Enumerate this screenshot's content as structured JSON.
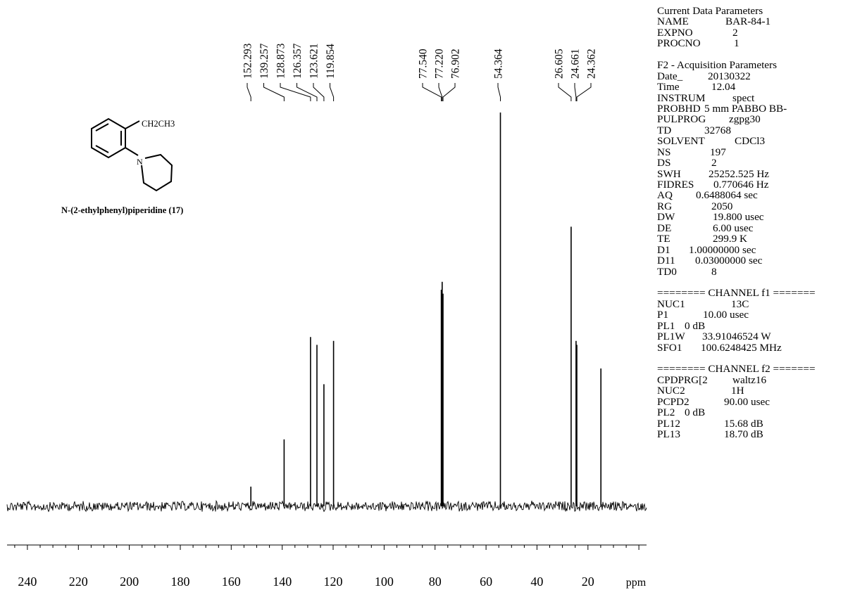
{
  "chart_data": {
    "type": "line",
    "title": "",
    "xlabel": "ppm",
    "ylabel": "",
    "x_reversed": true,
    "xlim": [
      248,
      -3
    ],
    "ticks": [
      240,
      220,
      200,
      180,
      160,
      140,
      120,
      100,
      80,
      60,
      40,
      20
    ],
    "tick_labels": [
      "240",
      "220",
      "200",
      "180",
      "160",
      "140",
      "120",
      "100",
      "80",
      "60",
      "40",
      "20"
    ],
    "axis_unit": "ppm",
    "peak_labels": [
      "152.293",
      "139.257",
      "128.873",
      "126.357",
      "123.621",
      "119.854",
      "77.540",
      "77.220",
      "76.902",
      "54.364",
      "26.605",
      "24.661",
      "24.362"
    ],
    "peaks": [
      {
        "ppm": 152.293,
        "height": 0.05
      },
      {
        "ppm": 139.257,
        "height": 0.17
      },
      {
        "ppm": 128.873,
        "height": 0.43
      },
      {
        "ppm": 126.357,
        "height": 0.41
      },
      {
        "ppm": 123.621,
        "height": 0.31
      },
      {
        "ppm": 119.854,
        "height": 0.42
      },
      {
        "ppm": 77.54,
        "height": 0.55
      },
      {
        "ppm": 77.22,
        "height": 0.57
      },
      {
        "ppm": 76.902,
        "height": 0.54
      },
      {
        "ppm": 54.364,
        "height": 1.0
      },
      {
        "ppm": 26.605,
        "height": 0.71
      },
      {
        "ppm": 24.661,
        "height": 0.42
      },
      {
        "ppm": 24.362,
        "height": 0.41
      },
      {
        "ppm": 14.9,
        "height": 0.35
      }
    ],
    "line_color": "#000000"
  },
  "compound": {
    "substituent": "CH2CH3",
    "ring_atom": "N",
    "name": "N-(2-ethylphenyl)piperidine (17)"
  },
  "parameters": [
    {
      "label": "Current Data Parameters",
      "value": ""
    },
    {
      "label": "NAME",
      "value": "BAR-84-1"
    },
    {
      "label": "EXPNO",
      "value": "2"
    },
    {
      "label": "PROCNO",
      "value": "1"
    },
    {
      "label": "",
      "value": ""
    },
    {
      "label": "F2 - Acquisition Parameters",
      "value": ""
    },
    {
      "label": "Date_",
      "value": "20130322"
    },
    {
      "label": "Time",
      "value": "12.04"
    },
    {
      "label": "INSTRUM",
      "value": "spect"
    },
    {
      "label": "PROBHD",
      "value": "5 mm PABBO BB-"
    },
    {
      "label": "PULPROG",
      "value": "zgpg30"
    },
    {
      "label": "TD",
      "value": "32768"
    },
    {
      "label": "SOLVENT",
      "value": "CDCl3"
    },
    {
      "label": "NS",
      "value": "197"
    },
    {
      "label": "DS",
      "value": "2"
    },
    {
      "label": "SWH",
      "value": "25252.525 Hz"
    },
    {
      "label": "FIDRES",
      "value": "0.770646 Hz"
    },
    {
      "label": "AQ",
      "value": "0.6488064 sec"
    },
    {
      "label": "RG",
      "value": "2050"
    },
    {
      "label": "DW",
      "value": "19.800 usec"
    },
    {
      "label": "DE",
      "value": "6.00 usec"
    },
    {
      "label": "TE",
      "value": "299.9 K"
    },
    {
      "label": "D1",
      "value": "1.00000000 sec"
    },
    {
      "label": "D11",
      "value": "0.03000000 sec"
    },
    {
      "label": "TD0",
      "value": "8"
    },
    {
      "label": "",
      "value": ""
    },
    {
      "label": "======== CHANNEL f1 =======",
      "value": ""
    },
    {
      "label": "NUC1",
      "value": "13C"
    },
    {
      "label": "P1",
      "value": "10.00 usec"
    },
    {
      "label": "PL1",
      "value": "0 dB"
    },
    {
      "label": "PL1W",
      "value": "33.91046524 W"
    },
    {
      "label": "SFO1",
      "value": "100.6248425 MHz"
    },
    {
      "label": "",
      "value": ""
    },
    {
      "label": "======== CHANNEL f2 =======",
      "value": ""
    },
    {
      "label": "CPDPRG[2",
      "value": "waltz16"
    },
    {
      "label": "NUC2",
      "value": "1H"
    },
    {
      "label": "PCPD2",
      "value": "90.00 usec"
    },
    {
      "label": "PL2",
      "value": "0 dB"
    },
    {
      "label": "PL12",
      "value": "15.68 dB"
    },
    {
      "label": "PL13",
      "value": "18.70 dB"
    }
  ]
}
